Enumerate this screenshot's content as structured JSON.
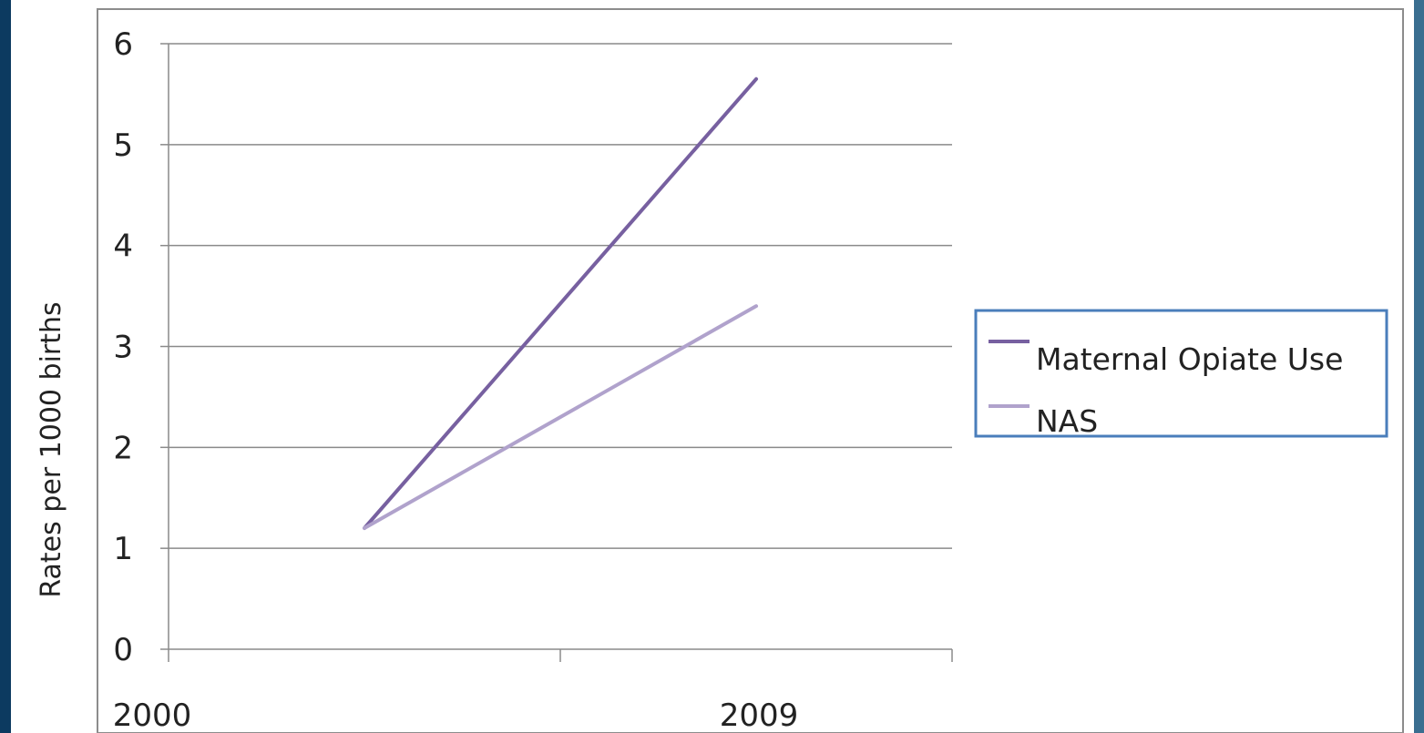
{
  "chart_data": {
    "type": "line",
    "title": "",
    "xlabel": "",
    "ylabel": "Rates per 1000 births",
    "ylim": [
      0,
      6
    ],
    "yticks": [
      "0",
      "1",
      "2",
      "3",
      "4",
      "5",
      "6"
    ],
    "x_tick_labels": [
      "2000",
      "2009"
    ],
    "grid": true,
    "legend_position": "right",
    "x": [
      2000,
      2009
    ],
    "series": [
      {
        "name": "Maternal Opiate Use",
        "color": "#7760a0",
        "values": [
          1.2,
          5.65
        ]
      },
      {
        "name": "NAS",
        "color": "#b0a2cc",
        "values": [
          1.2,
          3.4
        ]
      }
    ]
  }
}
